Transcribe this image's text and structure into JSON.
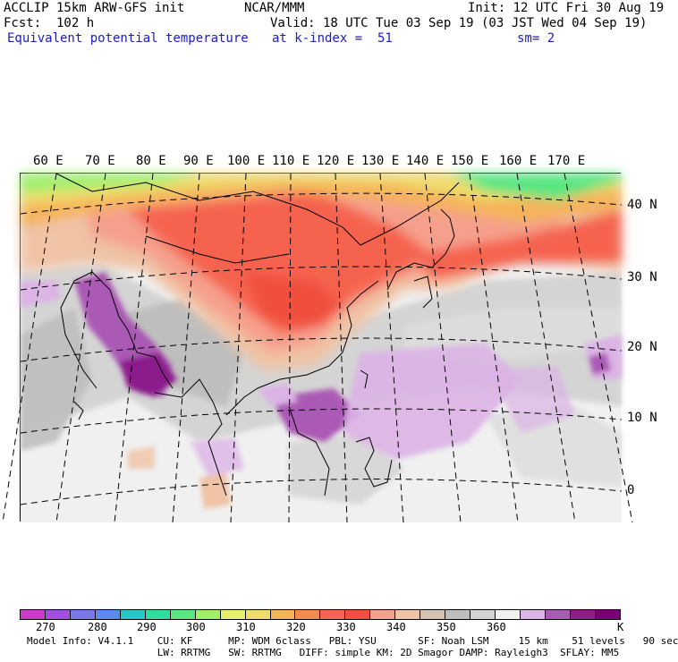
{
  "header": {
    "left_line1": "ACCLIP 15km ARW-GFS init",
    "left_line2": "Fcst:  102 h",
    "field": "Equivalent potential temperature",
    "center_line1": "NCAR/MMM",
    "valid": "Valid: 18 UTC Tue 03 Sep 19 (03 JST Wed 04 Sep 19)",
    "level": "at k-index =  51",
    "init": "Init: 12 UTC Fri 30 Aug 19",
    "smooth": "sm= 2"
  },
  "map": {
    "lon_labels": [
      "60 E",
      "70 E",
      "80 E",
      "90 E",
      "100 E",
      "110 E",
      "120 E",
      "130 E",
      "140 E",
      "150 E",
      "160 E",
      "170 E"
    ],
    "lat_labels": [
      "40 N",
      "30 N",
      "20 N",
      "10 N",
      "0"
    ]
  },
  "colorbar": {
    "colors": [
      "#c83cc8",
      "#a050dc",
      "#7878e6",
      "#5a8cf0",
      "#28c8c8",
      "#32dca0",
      "#5ae682",
      "#a0f06e",
      "#e6f06e",
      "#f0dc6e",
      "#f5b45a",
      "#f08c50",
      "#f56450",
      "#f0503c",
      "#f5a08c",
      "#f0c3a5",
      "#d2c3b4",
      "#bebebe",
      "#d2d2d2",
      "#f0f0f0",
      "#dcb4e6",
      "#aa5ab4",
      "#8c1e8c",
      "#780078"
    ],
    "tick_labels": [
      "270",
      "280",
      "290",
      "300",
      "310",
      "320",
      "330",
      "340",
      "350",
      "360"
    ],
    "unit": "K"
  },
  "model_info": {
    "line1": "Model Info: V4.1.1    CU: KF      MP: WDM 6class   PBL: YSU       SF: Noah LSM     15 km    51 levels   90 sec",
    "line2": "                      LW: RRTMG   SW: RRTMG   DIFF: simple KM: 2D Smagor DAMP: Rayleigh3  SFLAY: MM5"
  }
}
